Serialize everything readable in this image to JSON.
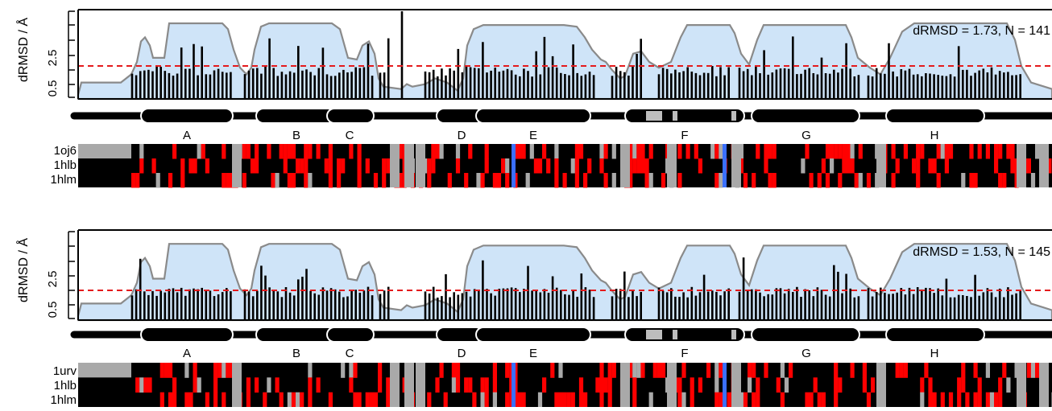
{
  "chart_data": [
    {
      "type": "bar",
      "ylabel": "dRMSD / Å",
      "yticks": [
        "0.5",
        "2.5"
      ],
      "ylim": [
        0.3,
        5.3
      ],
      "threshold": 1.73,
      "annotation": "dRMSD = 1.73, N = 141",
      "helix_labels": [
        "A",
        "B",
        "C",
        "D",
        "E",
        "F",
        "G",
        "H"
      ],
      "structures": [
        "1oj6",
        "1hlb",
        "1hlm"
      ],
      "colors": {
        "envelope_fill": "#cfe4f8",
        "envelope_line": "#8a8a8a",
        "threshold": "#e41a1c",
        "matrix_dark": "#000000",
        "matrix_red": "#ff0000",
        "matrix_grey": "#a9a9a9",
        "matrix_blue": "#3a6fff"
      }
    },
    {
      "type": "bar",
      "ylabel": "dRMSD / Å",
      "yticks": [
        "0.5",
        "2.5"
      ],
      "ylim": [
        0.3,
        5.3
      ],
      "threshold": 1.53,
      "annotation": "dRMSD = 1.53, N = 145",
      "helix_labels": [
        "A",
        "B",
        "C",
        "D",
        "E",
        "F",
        "G",
        "H"
      ],
      "structures": [
        "1urv",
        "1hlb",
        "1hlm"
      ],
      "colors": {
        "envelope_fill": "#cfe4f8",
        "envelope_line": "#8a8a8a",
        "threshold": "#e41a1c",
        "matrix_dark": "#000000",
        "matrix_red": "#ff0000",
        "matrix_grey": "#a9a9a9",
        "matrix_blue": "#3a6fff"
      }
    }
  ]
}
